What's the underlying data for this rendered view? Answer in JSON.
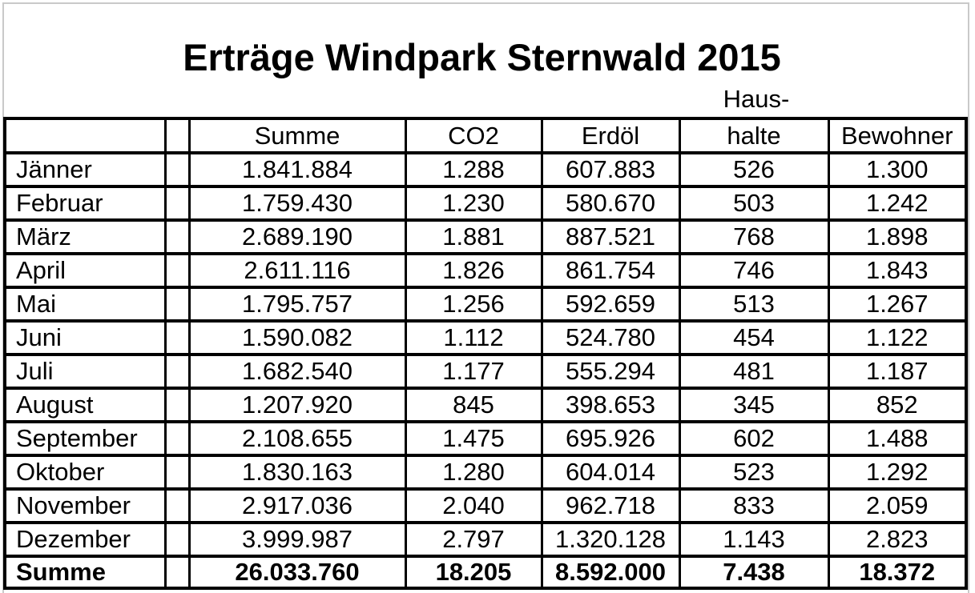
{
  "title": "Erträge Windpark Sternwald 2015",
  "haushalte_header_line1": "Haus-",
  "table": {
    "headers": {
      "month": "",
      "spacer": "",
      "summe": "Summe",
      "co2": "CO2",
      "erdoel": "Erdöl",
      "haushalte": "halte",
      "bewohner": "Bewohner"
    },
    "rows": [
      {
        "month": "Jänner",
        "summe": "1.841.884",
        "co2": "1.288",
        "erdoel": "607.883",
        "haushalte": "526",
        "bewohner": "1.300"
      },
      {
        "month": "Februar",
        "summe": "1.759.430",
        "co2": "1.230",
        "erdoel": "580.670",
        "haushalte": "503",
        "bewohner": "1.242"
      },
      {
        "month": "März",
        "summe": "2.689.190",
        "co2": "1.881",
        "erdoel": "887.521",
        "haushalte": "768",
        "bewohner": "1.898"
      },
      {
        "month": "April",
        "summe": "2.611.116",
        "co2": "1.826",
        "erdoel": "861.754",
        "haushalte": "746",
        "bewohner": "1.843"
      },
      {
        "month": "Mai",
        "summe": "1.795.757",
        "co2": "1.256",
        "erdoel": "592.659",
        "haushalte": "513",
        "bewohner": "1.267"
      },
      {
        "month": "Juni",
        "summe": "1.590.082",
        "co2": "1.112",
        "erdoel": "524.780",
        "haushalte": "454",
        "bewohner": "1.122"
      },
      {
        "month": "Juli",
        "summe": "1.682.540",
        "co2": "1.177",
        "erdoel": "555.294",
        "haushalte": "481",
        "bewohner": "1.187"
      },
      {
        "month": "August",
        "summe": "1.207.920",
        "co2": "845",
        "erdoel": "398.653",
        "haushalte": "345",
        "bewohner": "852"
      },
      {
        "month": "September",
        "summe": "2.108.655",
        "co2": "1.475",
        "erdoel": "695.926",
        "haushalte": "602",
        "bewohner": "1.488"
      },
      {
        "month": "Oktober",
        "summe": "1.830.163",
        "co2": "1.280",
        "erdoel": "604.014",
        "haushalte": "523",
        "bewohner": "1.292"
      },
      {
        "month": "November",
        "summe": "2.917.036",
        "co2": "2.040",
        "erdoel": "962.718",
        "haushalte": "833",
        "bewohner": "2.059"
      },
      {
        "month": "Dezember",
        "summe": "3.999.987",
        "co2": "2.797",
        "erdoel": "1.320.128",
        "haushalte": "1.143",
        "bewohner": "2.823"
      }
    ],
    "total": {
      "month": "Summe",
      "summe": "26.033.760",
      "co2": "18.205",
      "erdoel": "8.592.000",
      "haushalte": "7.438",
      "bewohner": "18.372"
    }
  },
  "chart_data": {
    "type": "table",
    "title": "Erträge Windpark Sternwald 2015",
    "categories": [
      "Jänner",
      "Februar",
      "März",
      "April",
      "Mai",
      "Juni",
      "Juli",
      "August",
      "September",
      "Oktober",
      "November",
      "Dezember"
    ],
    "series": [
      {
        "name": "Summe",
        "values": [
          1841884,
          1759430,
          2689190,
          2611116,
          1795757,
          1590082,
          1682540,
          1207920,
          2108655,
          1830163,
          2917036,
          3999987
        ],
        "total": 26033760
      },
      {
        "name": "CO2",
        "values": [
          1288,
          1230,
          1881,
          1826,
          1256,
          1112,
          1177,
          845,
          1475,
          1280,
          2040,
          2797
        ],
        "total": 18205
      },
      {
        "name": "Erdöl",
        "values": [
          607883,
          580670,
          887521,
          861754,
          592659,
          524780,
          555294,
          398653,
          695926,
          604014,
          962718,
          1320128
        ],
        "total": 8592000
      },
      {
        "name": "Haushalte",
        "values": [
          526,
          503,
          768,
          746,
          513,
          454,
          481,
          345,
          602,
          523,
          833,
          1143
        ],
        "total": 7438
      },
      {
        "name": "Bewohner",
        "values": [
          1300,
          1242,
          1898,
          1843,
          1267,
          1122,
          1187,
          852,
          1488,
          1292,
          2059,
          2823
        ],
        "total": 18372
      }
    ],
    "layout": "columns: months | spacer | Summe | CO2 | Erdöl | Haushalte | Bewohner; last row is bold totals"
  },
  "colors": {
    "background": "#ffffff",
    "table_border": "#000000",
    "frame_border": "#c9c9c9",
    "text": "#000000"
  }
}
